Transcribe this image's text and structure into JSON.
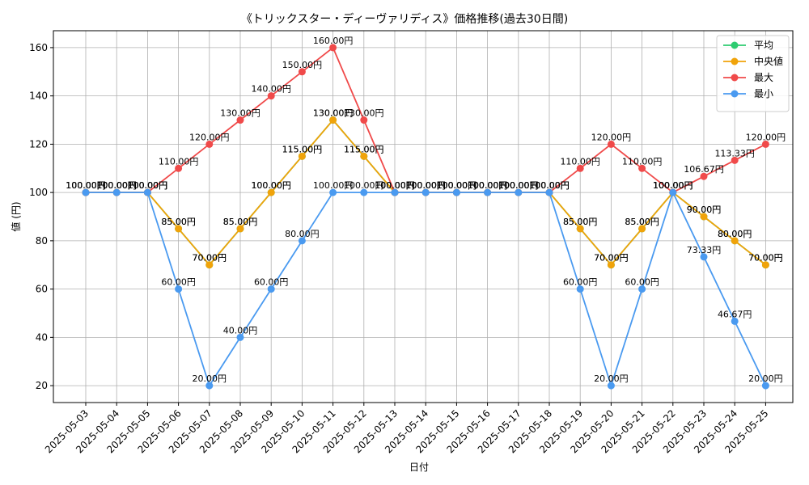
{
  "chart_data": {
    "type": "line",
    "title": "《トリックスター・ディーヴァリディス》価格推移(過去30日間)",
    "xlabel": "日付",
    "ylabel": "値 (円)",
    "ylim": [
      13,
      167
    ],
    "yticks": [
      20,
      40,
      60,
      80,
      100,
      120,
      140,
      160
    ],
    "grid": true,
    "legend_position": "top-right",
    "value_suffix": "円",
    "categories": [
      "2025-05-03",
      "2025-05-04",
      "2025-05-05",
      "2025-05-06",
      "2025-05-07",
      "2025-05-08",
      "2025-05-09",
      "2025-05-10",
      "2025-05-11",
      "2025-05-12",
      "2025-05-13",
      "2025-05-14",
      "2025-05-15",
      "2025-05-16",
      "2025-05-17",
      "2025-05-18",
      "2025-05-19",
      "2025-05-20",
      "2025-05-21",
      "2025-05-22",
      "2025-05-23",
      "2025-05-24",
      "2025-05-25"
    ],
    "series": [
      {
        "name": "平均",
        "color": "#2ecc71",
        "values": [
          100,
          100,
          100,
          85,
          70,
          85,
          100,
          115,
          130,
          115,
          100,
          100,
          100,
          100,
          100,
          100,
          85,
          70,
          85,
          100,
          90,
          80,
          70
        ]
      },
      {
        "name": "中央値",
        "color": "#f0a30a",
        "values": [
          100,
          100,
          100,
          85,
          70,
          85,
          100,
          115,
          130,
          115,
          100,
          100,
          100,
          100,
          100,
          100,
          85,
          70,
          85,
          100,
          90,
          80,
          70
        ]
      },
      {
        "name": "最大",
        "color": "#f04a4a",
        "values": [
          100,
          100,
          100,
          110,
          120,
          130,
          140,
          150,
          160,
          130,
          100,
          100,
          100,
          100,
          100,
          100,
          110,
          120,
          110,
          100,
          106.67,
          113.33,
          120
        ]
      },
      {
        "name": "最小",
        "color": "#4a9af0",
        "values": [
          100,
          100,
          100,
          60,
          20,
          40,
          60,
          80,
          100,
          100,
          100,
          100,
          100,
          100,
          100,
          100,
          60,
          20,
          60,
          100,
          73.33,
          46.67,
          20
        ]
      }
    ]
  }
}
